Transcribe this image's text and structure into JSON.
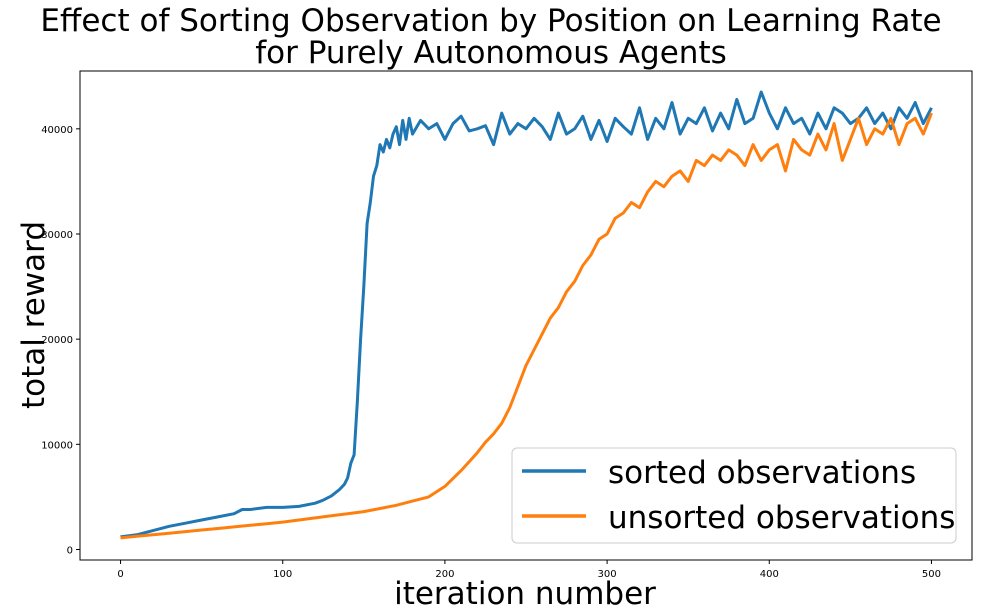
{
  "chart_data": {
    "type": "line",
    "title_line1": "Effect of Sorting Observation by Position on Learning Rate",
    "title_line2": "for Purely Autonomous Agents",
    "xlabel": "iteration number",
    "ylabel": "total reward",
    "xlim": [
      -25,
      525
    ],
    "ylim": [
      -1000,
      45500
    ],
    "x_ticks": [
      0,
      100,
      200,
      300,
      400,
      500
    ],
    "y_ticks": [
      0,
      10000,
      20000,
      30000,
      40000
    ],
    "grid": false,
    "legend_position": "lower-right",
    "series": [
      {
        "name": "sorted observations",
        "color": "#1f77b4",
        "x": [
          0,
          10,
          20,
          30,
          40,
          50,
          60,
          70,
          75,
          80,
          90,
          100,
          110,
          120,
          125,
          130,
          135,
          138,
          140,
          142,
          144,
          146,
          148,
          150,
          152,
          154,
          156,
          158,
          160,
          162,
          164,
          166,
          168,
          170,
          172,
          174,
          176,
          178,
          180,
          185,
          190,
          195,
          200,
          205,
          210,
          215,
          220,
          225,
          230,
          235,
          240,
          245,
          250,
          255,
          260,
          265,
          270,
          275,
          280,
          285,
          290,
          295,
          300,
          305,
          310,
          315,
          320,
          325,
          330,
          335,
          340,
          345,
          350,
          355,
          360,
          365,
          370,
          375,
          380,
          385,
          390,
          395,
          400,
          405,
          410,
          415,
          420,
          425,
          430,
          435,
          440,
          445,
          450,
          455,
          460,
          465,
          470,
          475,
          480,
          485,
          490,
          495,
          500
        ],
        "y": [
          1200,
          1400,
          1800,
          2200,
          2500,
          2800,
          3100,
          3400,
          3800,
          3800,
          4000,
          4000,
          4100,
          4400,
          4700,
          5100,
          5700,
          6200,
          6800,
          8200,
          9000,
          14000,
          20000,
          25000,
          31000,
          33000,
          35500,
          36500,
          38500,
          37800,
          39000,
          38200,
          39500,
          40200,
          38500,
          40800,
          39000,
          41000,
          39500,
          40800,
          40000,
          40500,
          39000,
          40500,
          41200,
          39800,
          40000,
          40300,
          38500,
          41500,
          39500,
          40500,
          40000,
          41000,
          40200,
          39000,
          41500,
          39500,
          40000,
          41200,
          39000,
          40800,
          38800,
          41000,
          40200,
          39500,
          42000,
          39000,
          41000,
          40000,
          42500,
          39500,
          41000,
          40500,
          42000,
          39800,
          41500,
          40000,
          42800,
          40500,
          41000,
          43500,
          41500,
          40000,
          42000,
          40500,
          41000,
          39500,
          41500,
          40000,
          42000,
          41500,
          40500,
          41000,
          42000,
          40500,
          41500,
          40000,
          42000,
          41000,
          42500,
          40500,
          42000
        ]
      },
      {
        "name": "unsorted observations",
        "color": "#ff7f0e",
        "x": [
          0,
          10,
          20,
          30,
          40,
          50,
          60,
          70,
          80,
          90,
          100,
          110,
          120,
          130,
          140,
          150,
          160,
          170,
          180,
          190,
          200,
          210,
          220,
          225,
          230,
          235,
          240,
          245,
          250,
          255,
          260,
          265,
          270,
          275,
          280,
          285,
          290,
          295,
          300,
          305,
          310,
          315,
          320,
          325,
          330,
          335,
          340,
          345,
          350,
          355,
          360,
          365,
          370,
          375,
          380,
          385,
          390,
          395,
          400,
          405,
          410,
          415,
          420,
          425,
          430,
          435,
          440,
          445,
          450,
          455,
          460,
          465,
          470,
          475,
          480,
          485,
          490,
          495,
          500
        ],
        "y": [
          1100,
          1250,
          1400,
          1550,
          1700,
          1850,
          2000,
          2150,
          2300,
          2450,
          2600,
          2800,
          3000,
          3200,
          3400,
          3600,
          3900,
          4200,
          4600,
          5000,
          6000,
          7500,
          9200,
          10200,
          11000,
          12000,
          13500,
          15500,
          17500,
          19000,
          20500,
          22000,
          23000,
          24500,
          25500,
          27000,
          28000,
          29500,
          30000,
          31500,
          32000,
          33000,
          32500,
          34000,
          35000,
          34500,
          35500,
          36000,
          35000,
          37000,
          36500,
          37500,
          37000,
          38000,
          37500,
          36500,
          38500,
          37000,
          38000,
          38500,
          36000,
          39000,
          38000,
          37500,
          39500,
          38000,
          40500,
          37000,
          39000,
          41000,
          38500,
          40000,
          39500,
          41000,
          38500,
          40500,
          41000,
          39500,
          41500
        ]
      }
    ]
  }
}
